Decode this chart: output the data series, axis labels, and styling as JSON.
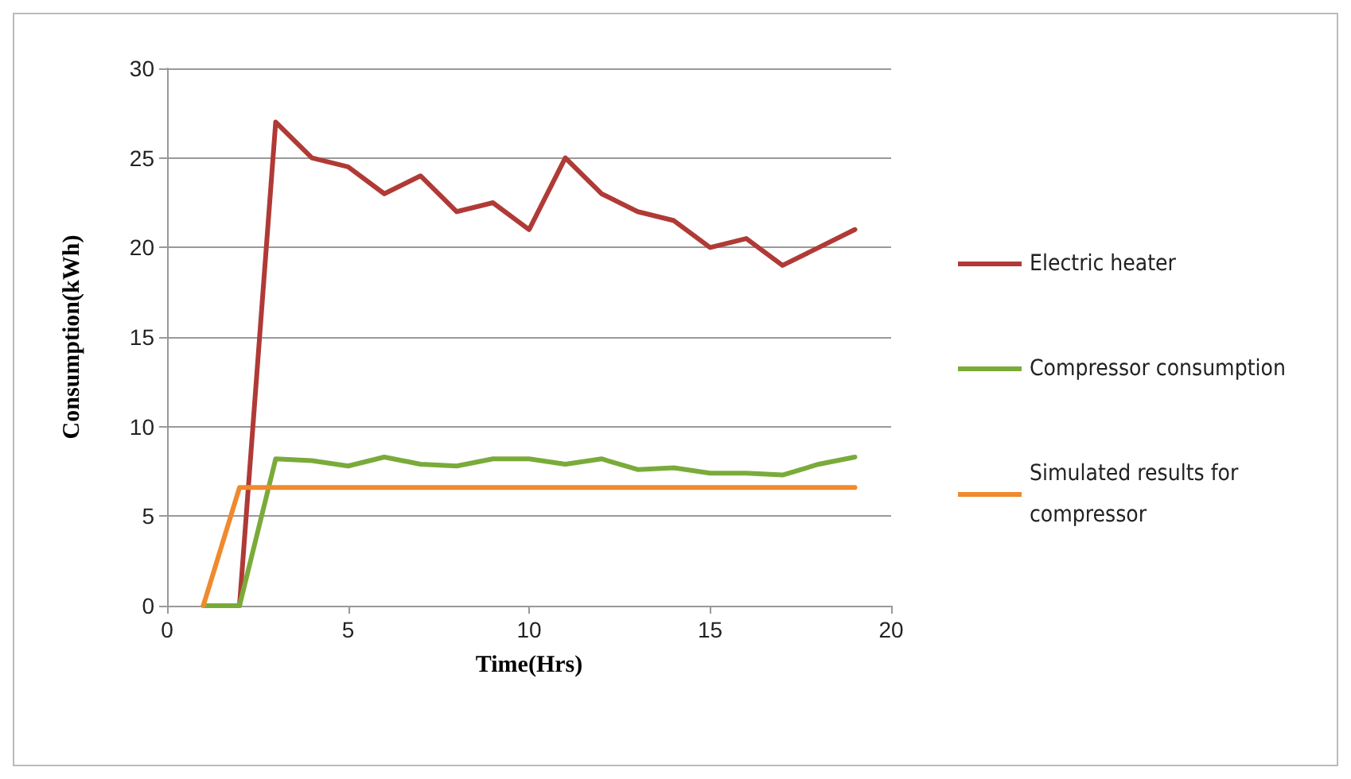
{
  "chart_data": {
    "type": "line",
    "xlabel": "Time(Hrs)",
    "ylabel": "Consumption(kWh)",
    "xlim": [
      0,
      20
    ],
    "xticks": [
      0,
      5,
      10,
      15,
      20
    ],
    "ylim": [
      0,
      30
    ],
    "yticks": [
      0,
      5,
      10,
      15,
      20,
      25,
      30
    ],
    "grid": "y",
    "legend": "right",
    "marker": "none",
    "line_style": "solid",
    "series": [
      {
        "name": "Electric heater",
        "color": "#b03a36",
        "x": [
          2,
          3,
          4,
          5,
          6,
          7,
          8,
          9,
          10,
          11,
          12,
          13,
          14,
          15,
          16,
          17,
          18,
          19
        ],
        "values": [
          0,
          27,
          25,
          24.5,
          23,
          24,
          22,
          22.5,
          21,
          25,
          23,
          22,
          21.5,
          20,
          20.5,
          19,
          20,
          21
        ]
      },
      {
        "name": "Compressor consumption",
        "color": "#7aab3a",
        "x": [
          1,
          2,
          3,
          4,
          5,
          6,
          7,
          8,
          9,
          10,
          11,
          12,
          13,
          14,
          15,
          16,
          17,
          18,
          19
        ],
        "values": [
          0,
          0,
          8.2,
          8.1,
          7.8,
          8.3,
          7.9,
          7.8,
          8.2,
          8.2,
          7.9,
          8.2,
          7.6,
          7.7,
          7.4,
          7.4,
          7.3,
          7.9,
          8.3
        ]
      },
      {
        "name": "Simulated results for compressor",
        "color": "#ef8a2e",
        "x": [
          1,
          2,
          19
        ],
        "values": [
          0,
          6.6,
          6.6
        ]
      }
    ]
  }
}
